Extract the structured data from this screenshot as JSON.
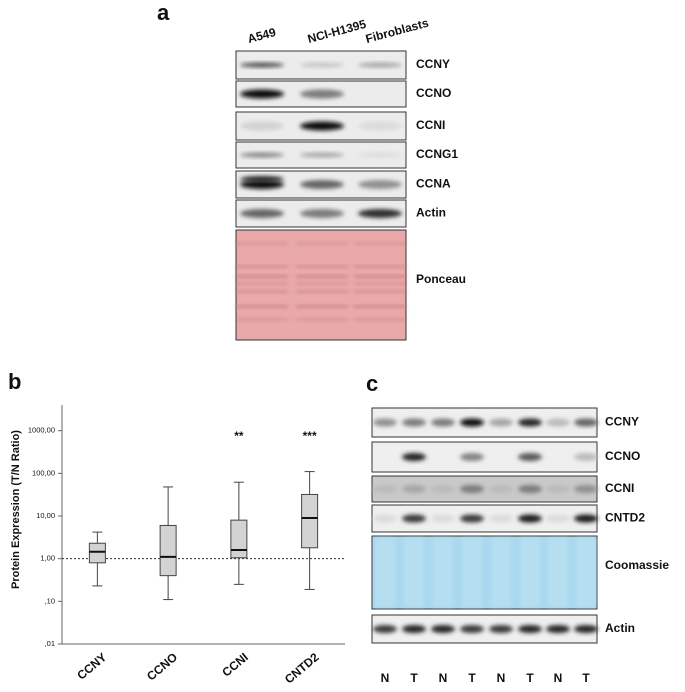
{
  "panel_a": {
    "label": "a",
    "lanes": [
      "A549",
      "NCI-H1395",
      "Fibroblasts"
    ],
    "rows": [
      "CCNY",
      "CCNO",
      "CCNI",
      "CCNG1",
      "CCNA",
      "Actin",
      "Ponceau"
    ]
  },
  "chart_data": {
    "type": "box",
    "panel_label": "b",
    "y_label": "Protein Expression (T/N Ratio)",
    "categories": [
      "CCNY",
      "CCNO",
      "CCNI",
      "CNTD2"
    ],
    "whisker_low": [
      0.23,
      0.11,
      0.25,
      0.19
    ],
    "q1": [
      0.8,
      0.4,
      1.05,
      1.8
    ],
    "median": [
      1.45,
      1.1,
      1.6,
      9
    ],
    "q3": [
      2.3,
      6,
      8,
      32
    ],
    "whisker_high": [
      4.2,
      48,
      62,
      110
    ],
    "significance": [
      null,
      null,
      "**",
      "***"
    ],
    "color": "#d3d3d3",
    "log_scale": true,
    "reference_line": 1,
    "ylim": [
      0.01,
      4000
    ],
    "yticks": [
      {
        "value": 0.01,
        "label": ",01"
      },
      {
        "value": 0.1,
        "label": ",10"
      },
      {
        "value": 1,
        "label": "1,00"
      },
      {
        "value": 10,
        "label": "10,00"
      },
      {
        "value": 100,
        "label": "100,00"
      },
      {
        "value": 1000,
        "label": "1000,00"
      }
    ]
  },
  "panel_c": {
    "label": "c",
    "lanes": [
      "N",
      "T",
      "N",
      "T",
      "N",
      "T",
      "N",
      "T"
    ],
    "rows": [
      "CCNY",
      "CCNO",
      "CCNI",
      "CNTD2",
      "Coomassie",
      "Actin"
    ]
  }
}
